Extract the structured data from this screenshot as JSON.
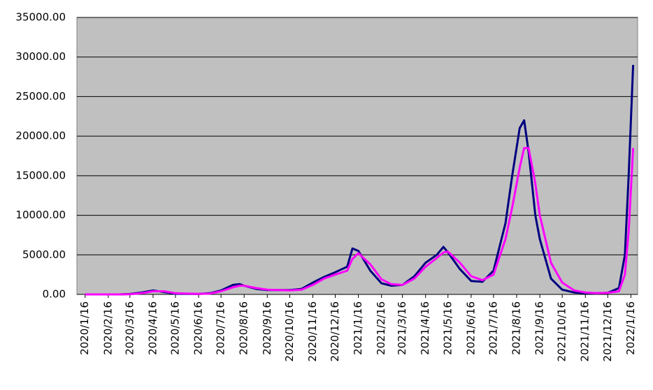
{
  "chart_data": {
    "type": "line",
    "x": [
      "2020/1/16",
      "2020/3/1",
      "2020/3/16",
      "2020/4/1",
      "2020/4/16",
      "2020/5/1",
      "2020/5/16",
      "2020/6/16",
      "2020/7/1",
      "2020/7/16",
      "2020/8/1",
      "2020/8/10",
      "2020/8/16",
      "2020/9/1",
      "2020/9/16",
      "2020/10/16",
      "2020/11/1",
      "2020/11/16",
      "2020/12/1",
      "2020/12/16",
      "2021/1/1",
      "2021/1/8",
      "2021/1/16",
      "2021/2/1",
      "2021/2/16",
      "2021/3/1",
      "2021/3/16",
      "2021/4/1",
      "2021/4/16",
      "2021/5/1",
      "2021/5/10",
      "2021/5/16",
      "2021/6/1",
      "2021/6/16",
      "2021/7/1",
      "2021/7/16",
      "2021/8/1",
      "2021/8/10",
      "2021/8/20",
      "2021/8/26",
      "2021/9/1",
      "2021/9/10",
      "2021/9/16",
      "2021/10/1",
      "2021/10/16",
      "2021/11/1",
      "2021/11/16",
      "2021/12/1",
      "2021/12/16",
      "2021/12/31",
      "2022/1/8",
      "2022/1/13",
      "2022/1/19"
    ],
    "series": [
      {
        "color": "#000080",
        "values": [
          0,
          0,
          50,
          250,
          500,
          300,
          80,
          50,
          150,
          500,
          1200,
          1300,
          1100,
          700,
          550,
          550,
          700,
          1500,
          2200,
          2800,
          3500,
          5800,
          5500,
          3000,
          1400,
          1100,
          1200,
          2300,
          4000,
          5000,
          6000,
          5300,
          3200,
          1700,
          1600,
          3000,
          9000,
          15000,
          21000,
          22000,
          18000,
          10000,
          7000,
          2000,
          600,
          250,
          150,
          150,
          200,
          800,
          5000,
          15000,
          29000
        ]
      },
      {
        "color": "#ff00ff",
        "values": [
          0,
          0,
          20,
          150,
          400,
          400,
          150,
          60,
          100,
          400,
          900,
          1100,
          1100,
          800,
          600,
          500,
          600,
          1200,
          2000,
          2500,
          3000,
          4500,
          5200,
          3800,
          1900,
          1300,
          1200,
          2000,
          3500,
          4600,
          5300,
          5400,
          4000,
          2300,
          1800,
          2500,
          7000,
          11000,
          16000,
          18500,
          18500,
          14000,
          10000,
          4000,
          1500,
          500,
          250,
          150,
          200,
          400,
          2500,
          8000,
          18500
        ]
      }
    ],
    "xlim": [
      "2020/1/5",
      "2022/1/25"
    ],
    "xticks": [
      "2020/1/16",
      "2020/2/16",
      "2020/3/16",
      "2020/4/16",
      "2020/5/16",
      "2020/6/16",
      "2020/7/16",
      "2020/8/16",
      "2020/9/16",
      "2020/10/16",
      "2020/11/16",
      "2020/12/16",
      "2021/1/16",
      "2021/2/16",
      "2021/3/16",
      "2021/4/16",
      "2021/5/16",
      "2021/6/16",
      "2021/7/16",
      "2021/8/16",
      "2021/9/16",
      "2021/10/16",
      "2021/11/16",
      "2021/12/16",
      "2022/1/16"
    ],
    "ylim": [
      0,
      35000
    ],
    "yticks": [
      {
        "value": 0,
        "label": "0.00"
      },
      {
        "value": 5000,
        "label": "5000.00"
      },
      {
        "value": 10000,
        "label": "10000.00"
      },
      {
        "value": 15000,
        "label": "15000.00"
      },
      {
        "value": 20000,
        "label": "20000.00"
      },
      {
        "value": 25000,
        "label": "25000.00"
      },
      {
        "value": 30000,
        "label": "30000.00"
      },
      {
        "value": 35000,
        "label": "35000.00"
      }
    ],
    "grid": true
  }
}
